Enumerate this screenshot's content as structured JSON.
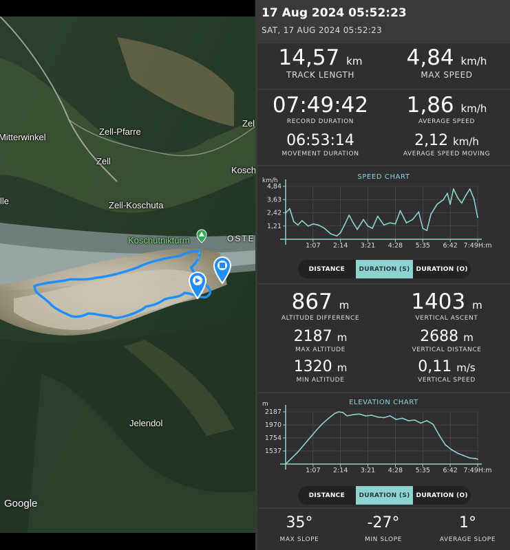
{
  "header": {
    "title": "17 Aug 2024 05:52:23",
    "subtitle": "SAT, 17 AUG 2024 05:52:23"
  },
  "map": {
    "places": [
      "Mitterwinkel",
      "Zell-Pfarre",
      "Zell",
      "Zell-Koschuta",
      "Koschutnikturm",
      "Jelendol",
      "Zel",
      "Kosch",
      "lle",
      "OSTE"
    ],
    "attribution": "Google",
    "colors": {
      "track": "#1e8fff",
      "poi": "#2fa84f"
    }
  },
  "summary": {
    "track_length": {
      "value": "14,57",
      "unit": "km",
      "label": "TRACK LENGTH"
    },
    "max_speed": {
      "value": "4,84",
      "unit": "km/h",
      "label": "MAX SPEED"
    }
  },
  "durations": {
    "record_duration": {
      "value": "07:49:42",
      "label": "RECORD DURATION"
    },
    "average_speed": {
      "value": "1,86",
      "unit": "km/h",
      "label": "AVERAGE SPEED"
    },
    "movement_duration": {
      "value": "06:53:14",
      "label": "MOVEMENT DURATION"
    },
    "average_speed_moving": {
      "value": "2,12",
      "unit": "km/h",
      "label": "AVERAGE SPEED MOVING"
    }
  },
  "speed_chart": {
    "title": "SPEED CHART",
    "unit_label": "km/h",
    "y_ticks": [
      "4,84",
      "3,63",
      "2,42",
      "1,21"
    ],
    "x_ticks": [
      "1:07",
      "2:14",
      "3:21",
      "4:28",
      "5:35",
      "6:42",
      "7:49"
    ],
    "x_unit": "H:m",
    "tabs": [
      "DISTANCE",
      "DURATION (S)",
      "DURATION (O)"
    ],
    "active_tab": 1
  },
  "altitude": {
    "altitude_difference": {
      "value": "867",
      "unit": "m",
      "label": "ALTITUDE DIFFERENCE"
    },
    "vertical_ascent": {
      "value": "1403",
      "unit": "m",
      "label": "VERTICAL ASCENT"
    },
    "max_altitude": {
      "value": "2187",
      "unit": "m",
      "label": "MAX ALTITUDE"
    },
    "vertical_distance": {
      "value": "2688",
      "unit": "m",
      "label": "VERTICAL DISTANCE"
    },
    "min_altitude": {
      "value": "1320",
      "unit": "m",
      "label": "MIN ALTITUDE"
    },
    "vertical_speed": {
      "value": "0,11",
      "unit": "m/s",
      "label": "VERTICAL SPEED"
    }
  },
  "elevation_chart": {
    "title": "ELEVATION CHART",
    "unit_label": "m",
    "y_ticks": [
      "2187",
      "1970",
      "1754",
      "1537"
    ],
    "x_ticks": [
      "1:07",
      "2:14",
      "3:21",
      "4:28",
      "5:35",
      "6:42",
      "7:49"
    ],
    "x_unit": "H:m",
    "tabs": [
      "DISTANCE",
      "DURATION (S)",
      "DURATION (O)"
    ],
    "active_tab": 1
  },
  "slope": {
    "max_slope": {
      "value": "35°",
      "label": "MAX SLOPE"
    },
    "min_slope": {
      "value": "-27°",
      "label": "MIN SLOPE"
    },
    "average_slope": {
      "value": "1°",
      "label": "AVERAGE SLOPE"
    }
  },
  "chart_data": [
    {
      "type": "line",
      "title": "SPEED CHART",
      "ylabel": "km/h",
      "xlabel": "H:m",
      "x_ticks": [
        "1:07",
        "2:14",
        "3:21",
        "4:28",
        "5:35",
        "6:42",
        "7:49"
      ],
      "y_ticks": [
        1.21,
        2.42,
        3.63,
        4.84
      ],
      "ylim": [
        0,
        4.84
      ],
      "x_minutes": [
        0,
        10,
        20,
        30,
        40,
        55,
        67,
        80,
        95,
        110,
        125,
        134,
        145,
        155,
        165,
        175,
        190,
        201,
        212,
        225,
        240,
        255,
        268,
        280,
        295,
        310,
        325,
        335,
        345,
        355,
        370,
        385,
        395,
        402,
        410,
        420,
        430,
        440,
        450,
        460,
        469
      ],
      "values": [
        2.4,
        2.8,
        1.6,
        1.3,
        1.7,
        1.2,
        1.4,
        1.3,
        1.0,
        0.5,
        0.3,
        0.6,
        1.4,
        2.2,
        1.5,
        0.9,
        1.8,
        1.2,
        1.0,
        2.1,
        1.3,
        1.5,
        1.4,
        2.6,
        1.5,
        1.8,
        2.5,
        1.0,
        0.8,
        2.3,
        3.2,
        3.6,
        4.2,
        3.2,
        4.6,
        3.8,
        3.3,
        4.0,
        4.6,
        3.7,
        2.0
      ]
    },
    {
      "type": "line",
      "title": "ELEVATION CHART",
      "ylabel": "m",
      "xlabel": "H:m",
      "x_ticks": [
        "1:07",
        "2:14",
        "3:21",
        "4:28",
        "5:35",
        "6:42",
        "7:49"
      ],
      "y_ticks": [
        1537,
        1754,
        1970,
        2187
      ],
      "ylim": [
        1320,
        2187
      ],
      "x_minutes": [
        0,
        15,
        30,
        45,
        60,
        75,
        90,
        105,
        120,
        130,
        140,
        150,
        165,
        180,
        195,
        210,
        225,
        240,
        255,
        270,
        285,
        300,
        315,
        330,
        345,
        360,
        375,
        390,
        405,
        420,
        435,
        450,
        465,
        469
      ],
      "values": [
        1320,
        1420,
        1520,
        1640,
        1760,
        1880,
        1990,
        2080,
        2160,
        2187,
        2175,
        2120,
        2140,
        2150,
        2120,
        2130,
        2100,
        2090,
        2120,
        2060,
        2080,
        2040,
        2050,
        2000,
        2040,
        1980,
        1800,
        1640,
        1560,
        1500,
        1460,
        1420,
        1410,
        1400
      ]
    }
  ]
}
